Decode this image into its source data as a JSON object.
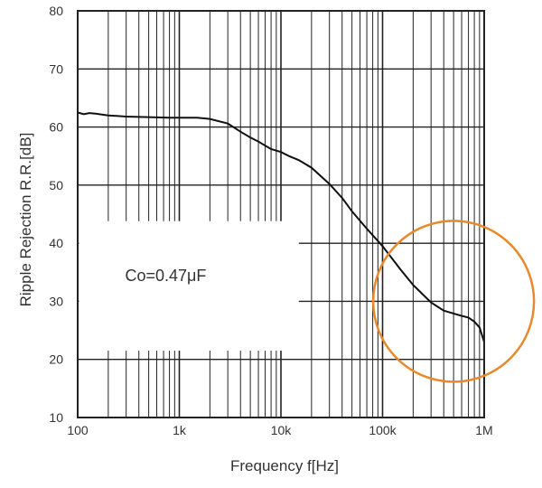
{
  "chart_data": {
    "type": "line",
    "xlabel": "Frequency f[Hz]",
    "ylabel": "Ripple Rejection R.R.[dB]",
    "x_scale": "log",
    "xlim": [
      100,
      1000000
    ],
    "ylim": [
      10,
      80
    ],
    "grid": true,
    "x_tick_labels": [
      "100",
      "1k",
      "10k",
      "100k",
      "1M"
    ],
    "x_tick_values": [
      100,
      1000,
      10000,
      100000,
      1000000
    ],
    "y_tick_labels": [
      "10",
      "20",
      "30",
      "40",
      "50",
      "60",
      "70",
      "80"
    ],
    "y_tick_values": [
      10,
      20,
      30,
      40,
      50,
      60,
      70,
      80
    ],
    "annotation": "Co=0.47μF",
    "highlight_circle": {
      "x_center": 500000,
      "y_center": 30.0,
      "color": "#E8892B"
    },
    "colors": {
      "line": "#111111",
      "grid": "#222222",
      "highlight": "#E8892B"
    },
    "series": [
      {
        "points": [
          [
            100,
            62.5
          ],
          [
            115,
            62.2
          ],
          [
            130,
            62.4
          ],
          [
            150,
            62.3
          ],
          [
            200,
            62.0
          ],
          [
            300,
            61.8
          ],
          [
            500,
            61.7
          ],
          [
            800,
            61.6
          ],
          [
            1000,
            61.6
          ],
          [
            1500,
            61.6
          ],
          [
            2000,
            61.4
          ],
          [
            3000,
            60.6
          ],
          [
            4000,
            59.2
          ],
          [
            5000,
            58.2
          ],
          [
            6000,
            57.5
          ],
          [
            8000,
            56.2
          ],
          [
            10000,
            55.7
          ],
          [
            12000,
            55.0
          ],
          [
            15000,
            54.3
          ],
          [
            20000,
            53.0
          ],
          [
            30000,
            50.2
          ],
          [
            40000,
            47.8
          ],
          [
            50000,
            45.5
          ],
          [
            70000,
            42.5
          ],
          [
            100000,
            39.5
          ],
          [
            150000,
            35.5
          ],
          [
            200000,
            32.8
          ],
          [
            300000,
            29.8
          ],
          [
            400000,
            28.4
          ],
          [
            500000,
            27.9
          ],
          [
            600000,
            27.5
          ],
          [
            700000,
            27.2
          ],
          [
            800000,
            26.5
          ],
          [
            900000,
            25.5
          ],
          [
            1000000,
            23.0
          ]
        ]
      }
    ]
  }
}
